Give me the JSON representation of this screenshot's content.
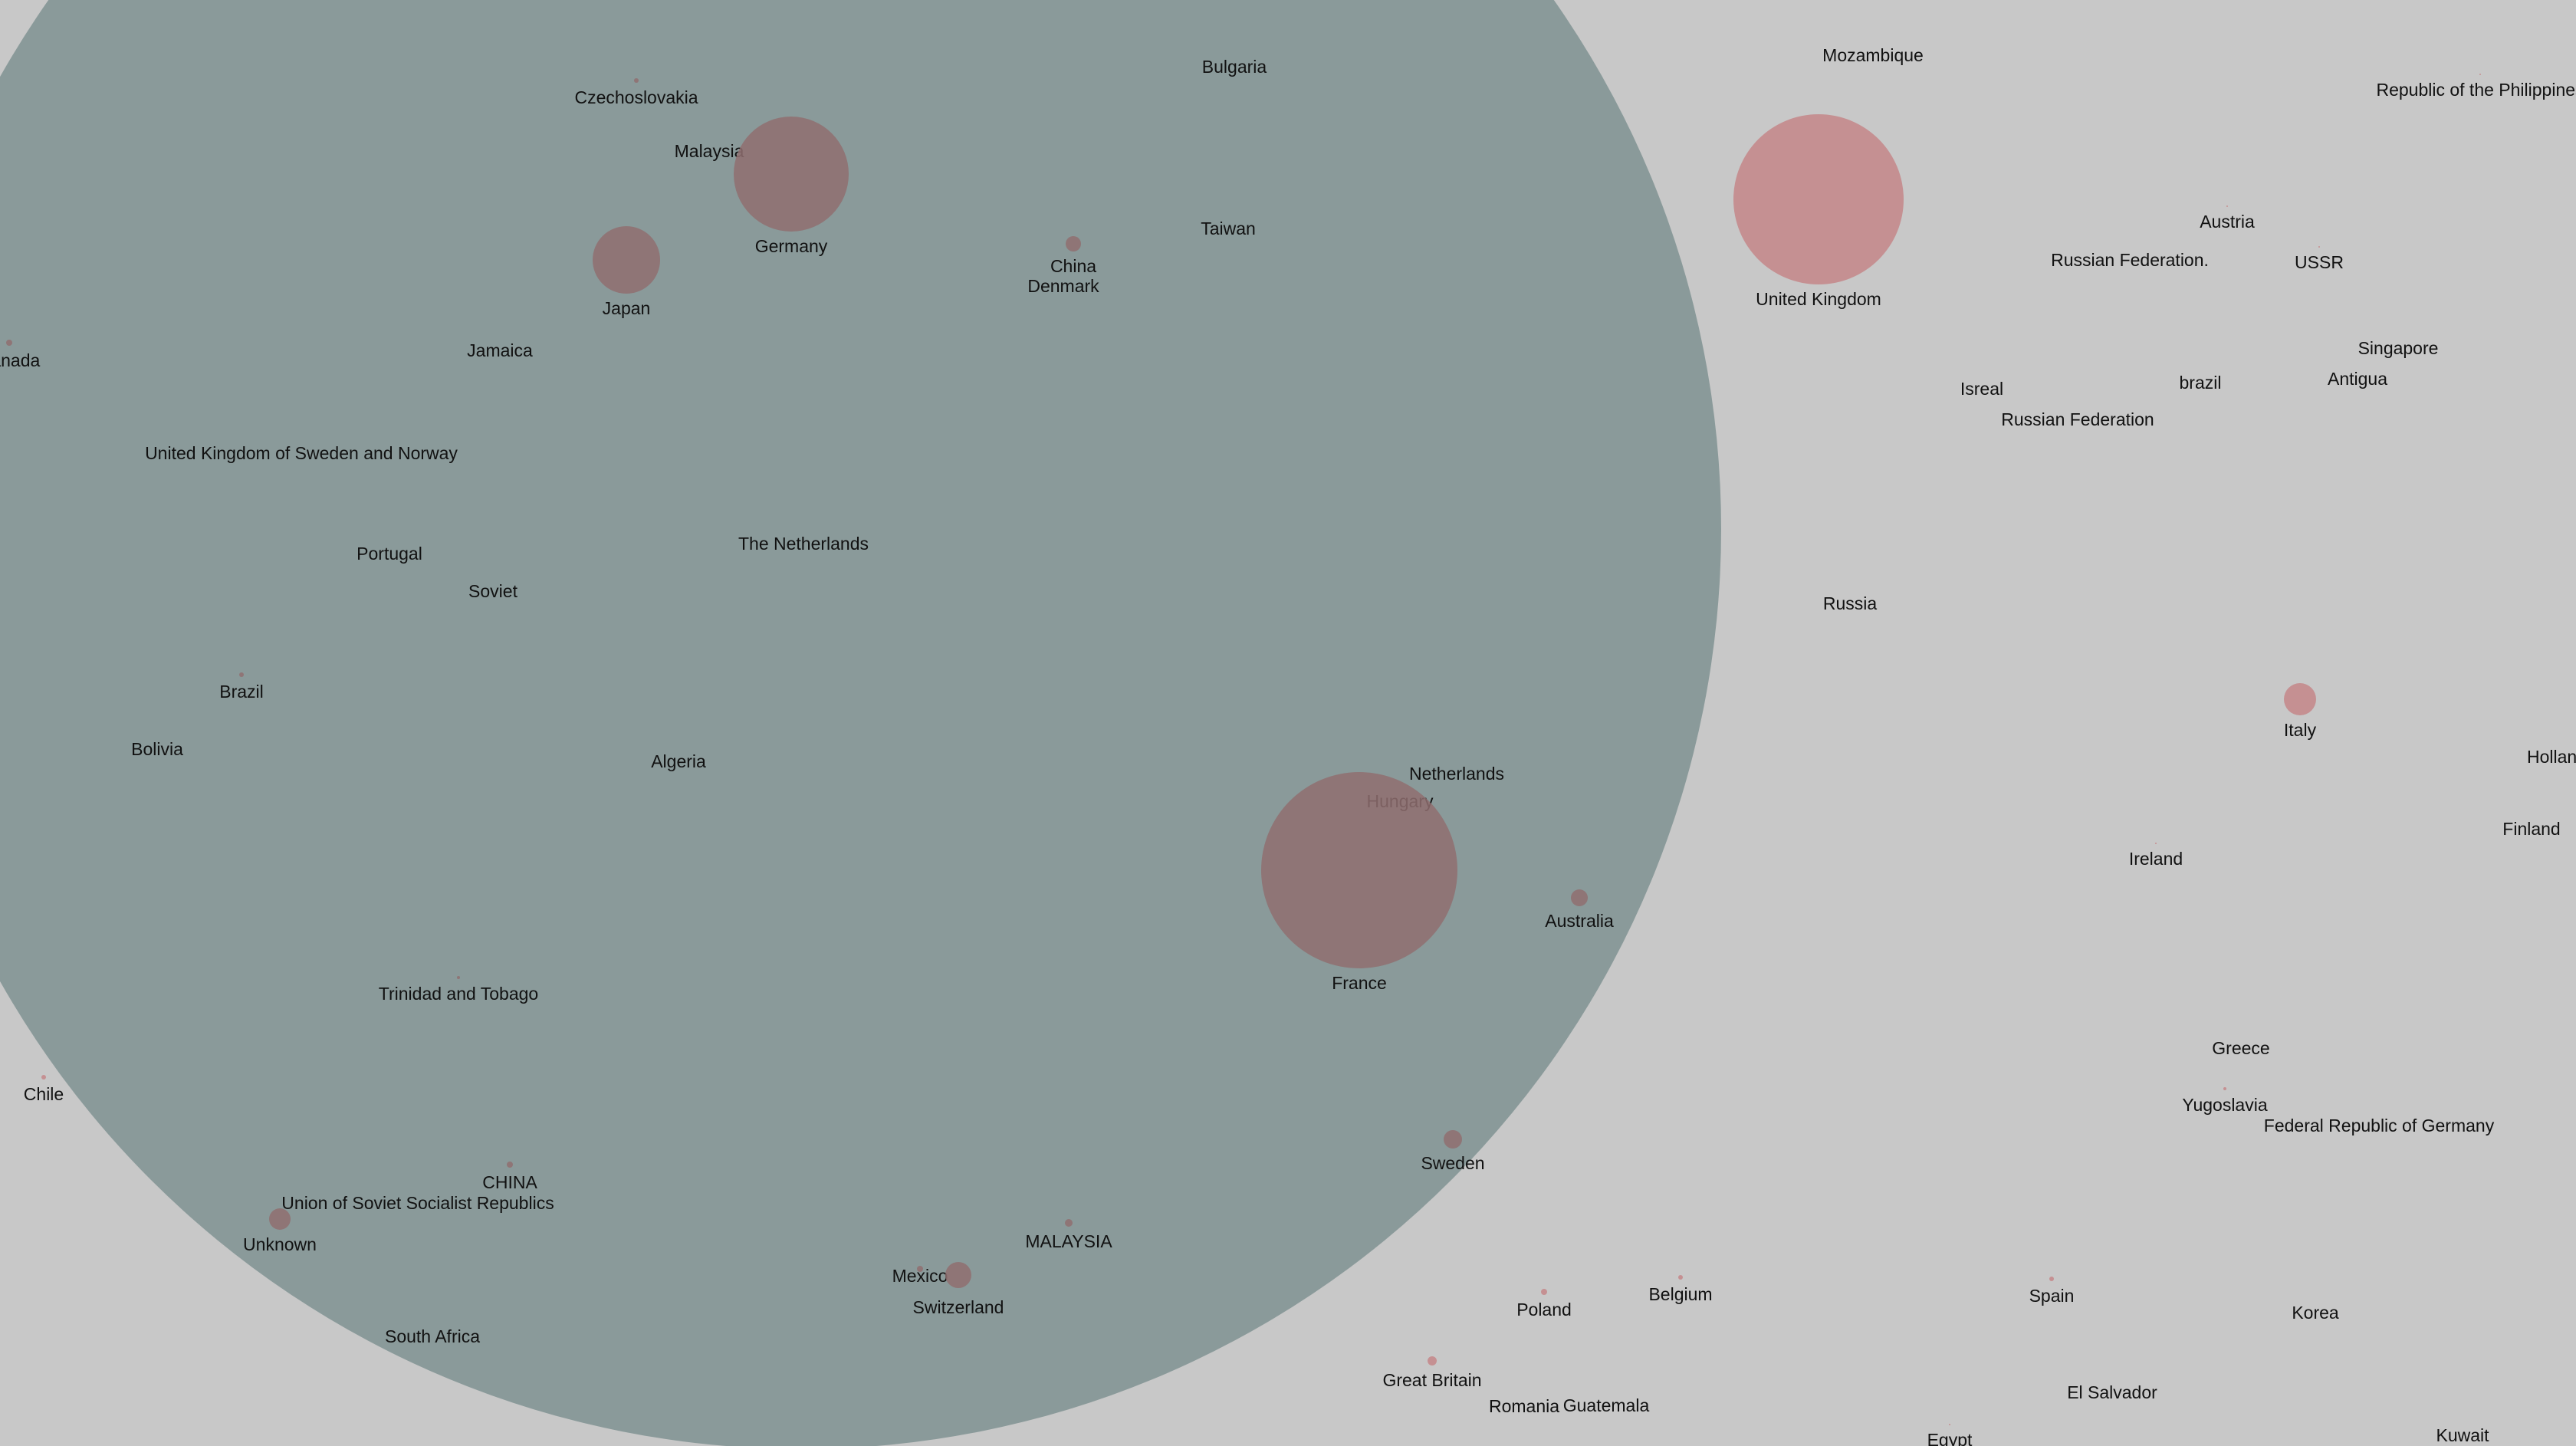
{
  "colors": {
    "background": "#c8c8c8",
    "big_circle": "#8a9a9a",
    "bubble": "#c48a8c",
    "bubble_dim": "#8f6e70"
  },
  "countries": [
    {
      "name": "Bulgaria",
      "r": 0
    },
    {
      "name": "Mozambique",
      "r": 0
    },
    {
      "name": "Republic of the Philippines",
      "r": 1
    },
    {
      "name": "Czechoslovakia",
      "r": 3
    },
    {
      "name": "Malaysia",
      "r": 0
    },
    {
      "name": "Germany",
      "r": 75
    },
    {
      "name": "United Kingdom",
      "r": 111
    },
    {
      "name": "Taiwan",
      "r": 0
    },
    {
      "name": "China",
      "r": 10
    },
    {
      "name": "Denmark",
      "r": 0
    },
    {
      "name": "Austria",
      "r": 1
    },
    {
      "name": "Russian Federation.",
      "r": 0
    },
    {
      "name": "USSR",
      "r": 1
    },
    {
      "name": "Japan",
      "r": 44
    },
    {
      "name": "Jamaica",
      "r": 0
    },
    {
      "name": "Canada",
      "r": 4
    },
    {
      "name": "Singapore",
      "r": 0
    },
    {
      "name": "Isreal",
      "r": 0
    },
    {
      "name": "brazil",
      "r": 0
    },
    {
      "name": "Antigua",
      "r": 0
    },
    {
      "name": "Russian Federation",
      "r": 0
    },
    {
      "name": "United Kingdom of Sweden and Norway",
      "r": 0
    },
    {
      "name": "Portugal",
      "r": 0
    },
    {
      "name": "The Netherlands",
      "r": 0
    },
    {
      "name": "Soviet",
      "r": 0
    },
    {
      "name": "Russia",
      "r": 0
    },
    {
      "name": "Brazil",
      "r": 3
    },
    {
      "name": "Italy",
      "r": 21
    },
    {
      "name": "Bolivia",
      "r": 0
    },
    {
      "name": "Algeria",
      "r": 0
    },
    {
      "name": "Holland",
      "r": 0
    },
    {
      "name": "Netherlands",
      "r": 0
    },
    {
      "name": "Hungary",
      "r": 0
    },
    {
      "name": "Finland",
      "r": 0
    },
    {
      "name": "Ireland",
      "r": 1
    },
    {
      "name": "Australia",
      "r": 11
    },
    {
      "name": "France",
      "r": 128
    },
    {
      "name": "Trinidad and Tobago",
      "r": 2
    },
    {
      "name": "Greece",
      "r": 0
    },
    {
      "name": "Chile",
      "r": 3
    },
    {
      "name": "Yugoslavia",
      "r": 2
    },
    {
      "name": "Federal Republic of Germany",
      "r": 0
    },
    {
      "name": "Sweden",
      "r": 12
    },
    {
      "name": "CHINA",
      "r": 4
    },
    {
      "name": "Union of Soviet Socialist Republics",
      "r": 0
    },
    {
      "name": "Unknown",
      "r": 14
    },
    {
      "name": "MALAYSIA",
      "r": 5
    },
    {
      "name": "Mexico",
      "r": 4
    },
    {
      "name": "Switzerland",
      "r": 17
    },
    {
      "name": "Poland",
      "r": 4
    },
    {
      "name": "Belgium",
      "r": 3
    },
    {
      "name": "Spain",
      "r": 3
    },
    {
      "name": "Korea",
      "r": 0
    },
    {
      "name": "South Africa",
      "r": 0
    },
    {
      "name": "Great Britain",
      "r": 6
    },
    {
      "name": "El Salvador",
      "r": 0
    },
    {
      "name": "Romania",
      "r": 0
    },
    {
      "name": "Guatemala",
      "r": 0
    },
    {
      "name": "Kuwait",
      "r": 0
    },
    {
      "name": "Egypt",
      "r": 1
    }
  ]
}
